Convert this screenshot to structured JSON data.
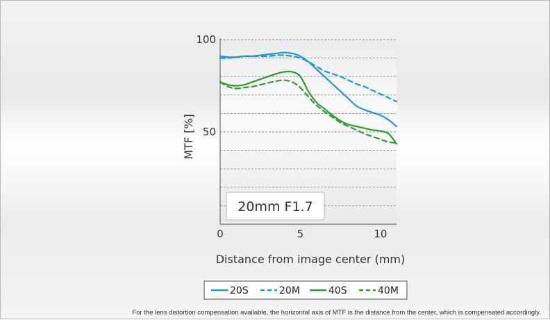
{
  "chart_data": {
    "type": "line",
    "ylabel": "MTF [%]",
    "xlabel": "Distance from image center (mm)",
    "xlim": [
      0,
      11
    ],
    "ylim": [
      0,
      100
    ],
    "x_ticks": [
      "0",
      "5",
      "10"
    ],
    "y_ticks": [
      "50",
      "100"
    ],
    "x_tick_values": [
      0,
      5,
      10
    ],
    "y_tick_values": [
      50,
      100
    ],
    "grid": "dashed horizontal every 10%",
    "inset_label": "20mm F1.7",
    "legend_position": "bottom",
    "series": [
      {
        "name": "20S",
        "color": "#1a9ad6",
        "style": "solid",
        "x": [
          0,
          0.5,
          1,
          1.5,
          2,
          2.5,
          3,
          3.5,
          4,
          4.5,
          5,
          5.5,
          6,
          6.5,
          7,
          7.5,
          8,
          8.5,
          9,
          9.5,
          10,
          10.5,
          11
        ],
        "y": [
          91,
          90.5,
          90.5,
          91,
          91,
          91.5,
          92,
          92.5,
          93,
          92.5,
          91,
          88,
          84,
          80,
          76,
          72,
          68,
          64,
          62,
          60.5,
          59,
          56.5,
          53
        ]
      },
      {
        "name": "20M",
        "color": "#1a9ad6",
        "style": "dashed",
        "x": [
          0,
          0.5,
          1,
          1.5,
          2,
          2.5,
          3,
          3.5,
          4,
          4.5,
          5,
          5.5,
          6,
          6.5,
          7,
          7.5,
          8,
          8.5,
          9,
          9.5,
          10,
          10.5,
          11
        ],
        "y": [
          90,
          90,
          90.5,
          91,
          91,
          91,
          91,
          91.5,
          91.5,
          91,
          90,
          88,
          85.5,
          83,
          81.5,
          80,
          78,
          76,
          74.5,
          72.5,
          70.5,
          68.5,
          66.5
        ]
      },
      {
        "name": "40S",
        "color": "#2e9a36",
        "style": "solid",
        "x": [
          0,
          0.5,
          1,
          1.5,
          2,
          2.5,
          3,
          3.5,
          4,
          4.5,
          5,
          5.5,
          6,
          6.5,
          7,
          7.5,
          8,
          8.5,
          9,
          9.5,
          10,
          10.5,
          11
        ],
        "y": [
          77,
          75.5,
          75,
          75.5,
          77,
          78.5,
          80,
          81.5,
          82.5,
          82.5,
          80,
          72,
          66,
          62.5,
          59,
          56,
          54,
          53,
          52,
          51,
          50.5,
          49,
          43.5
        ]
      },
      {
        "name": "40M",
        "color": "#2e9a36",
        "style": "dashed",
        "x": [
          0,
          0.5,
          1,
          1.5,
          2,
          2.5,
          3,
          3.5,
          4,
          4.5,
          5,
          5.5,
          6,
          6.5,
          7,
          7.5,
          8,
          8.5,
          9,
          9.5,
          10,
          10.5,
          11
        ],
        "y": [
          77,
          74.5,
          73.5,
          74,
          74.5,
          75.5,
          76.5,
          77.5,
          78,
          77,
          74,
          69,
          64.5,
          61,
          58,
          55,
          53,
          51,
          49,
          47.5,
          46,
          44.5,
          44
        ]
      }
    ]
  },
  "footnote": "For the lens distortion compensation available, the horizontal axis of MTF is the distance from the center, which is compensated accordingly."
}
